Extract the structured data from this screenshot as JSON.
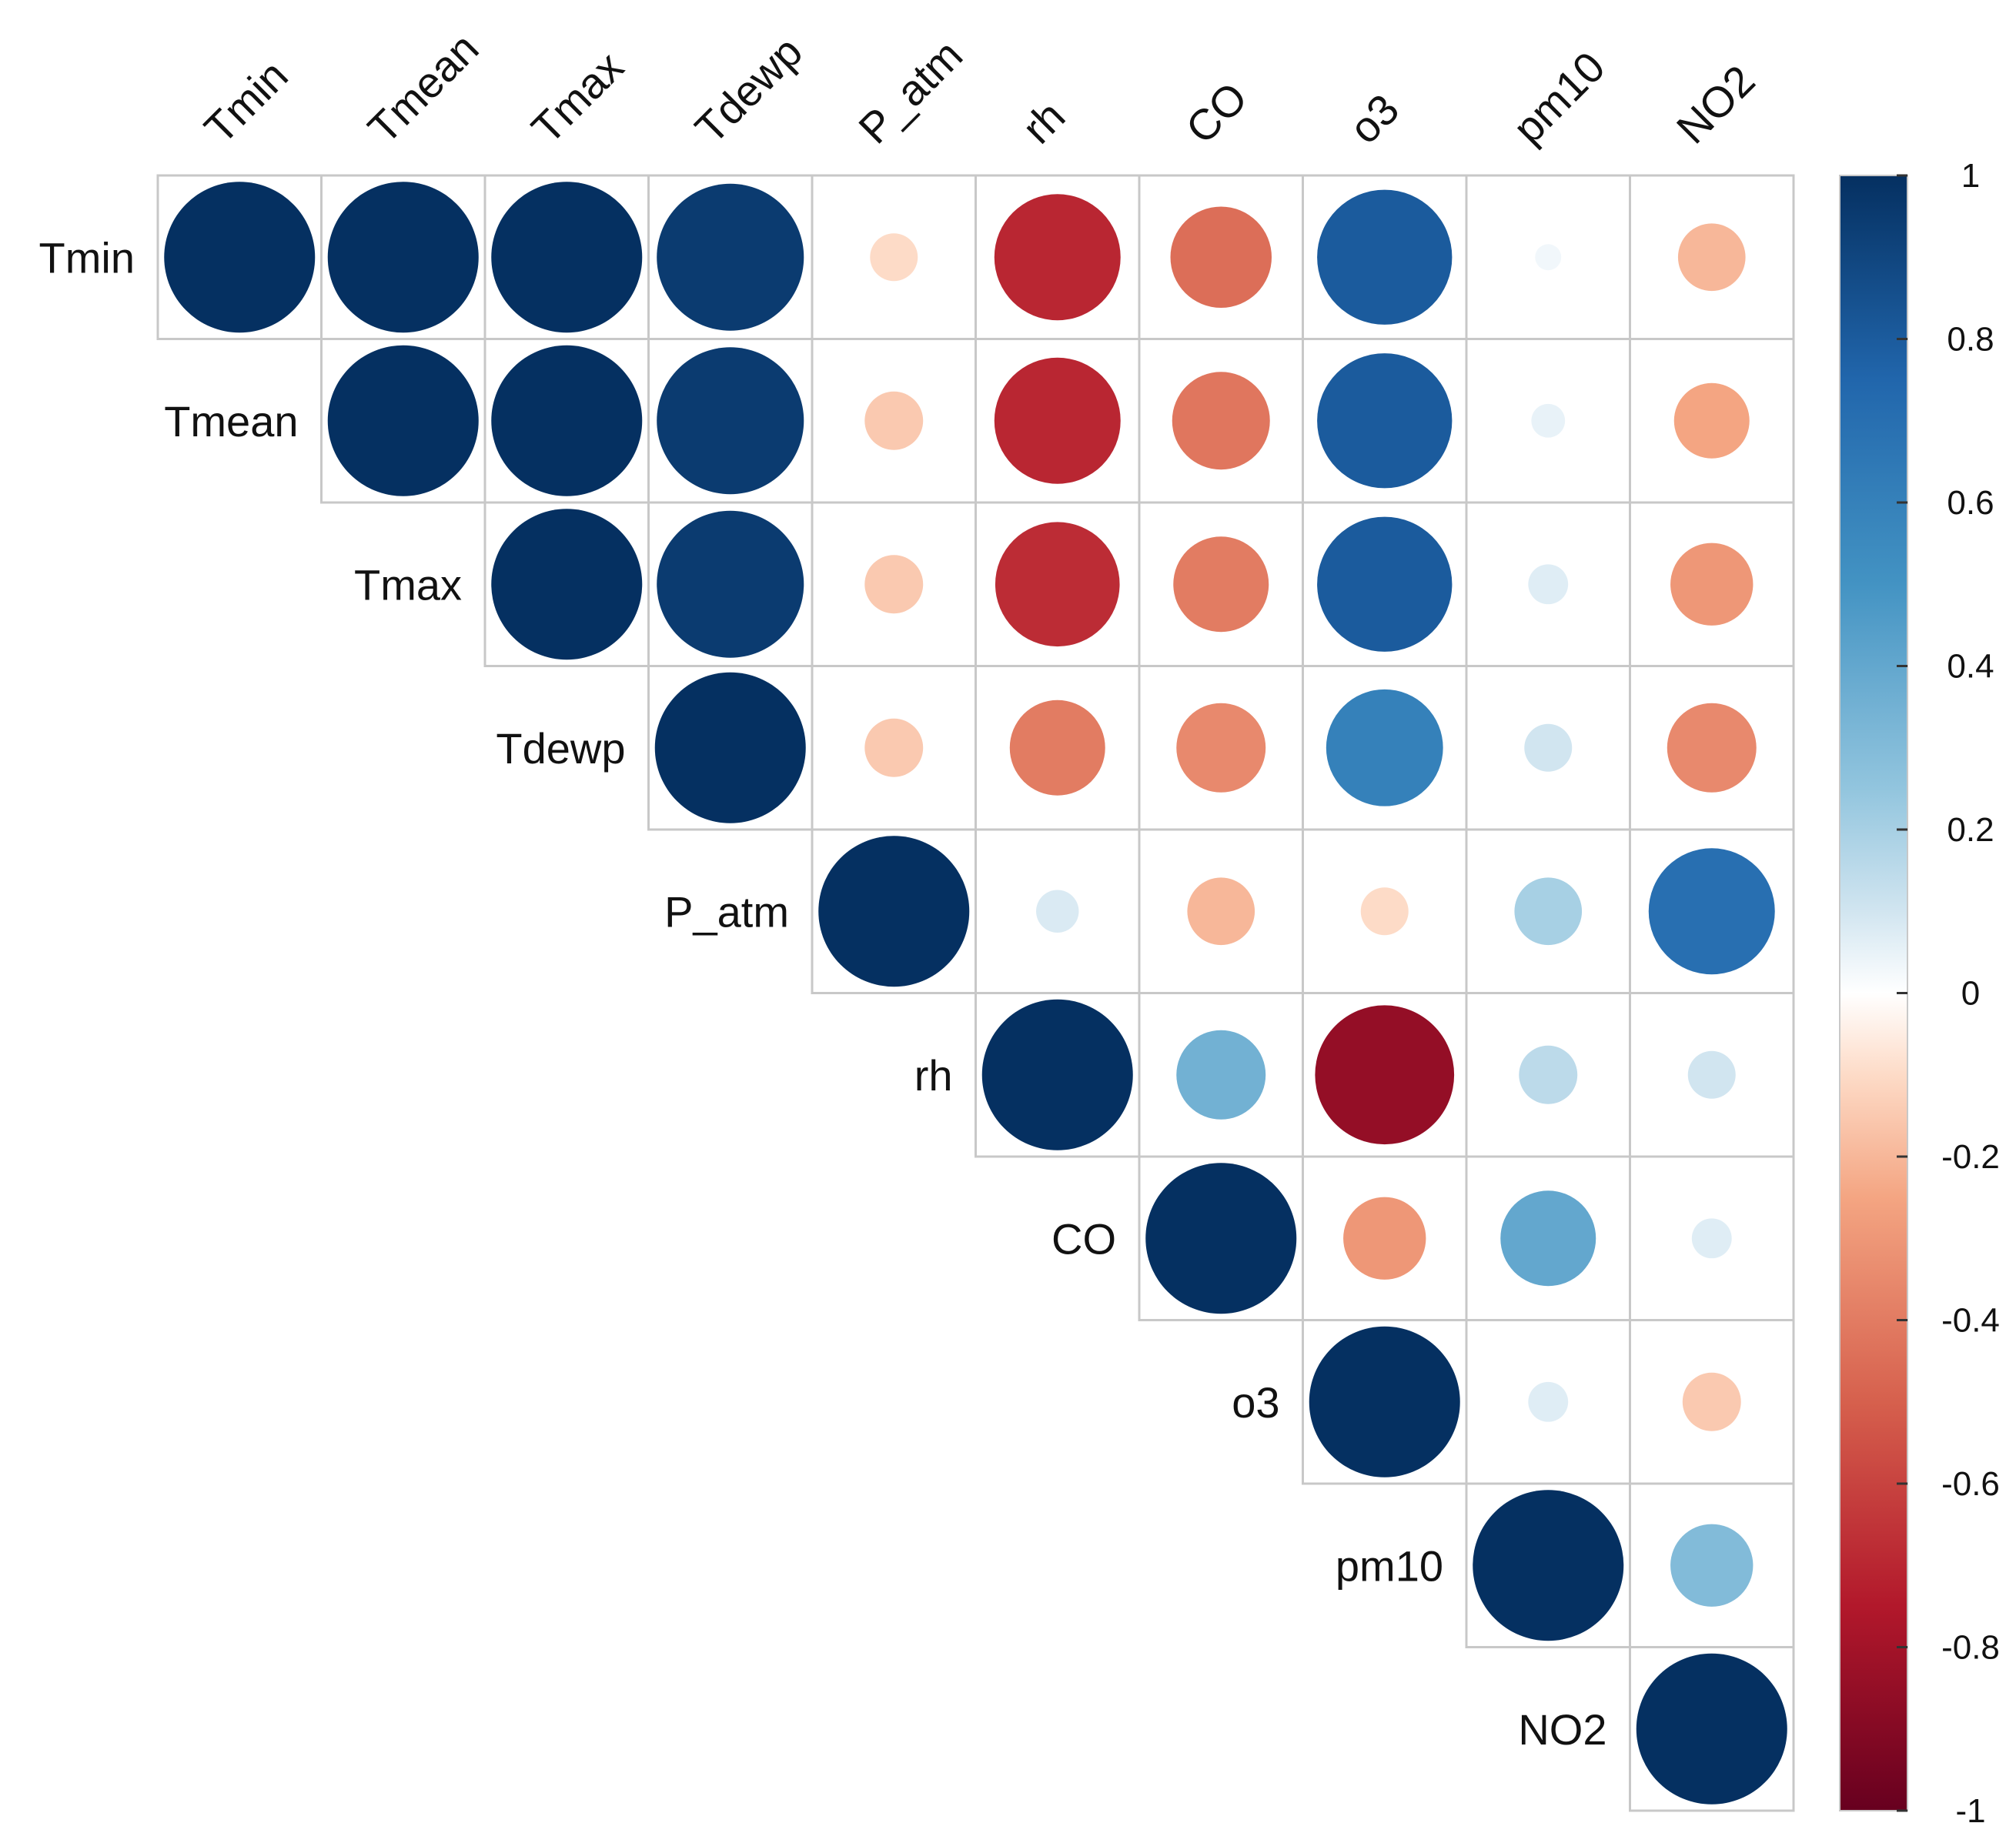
{
  "chart_data": {
    "type": "heatmap",
    "variant": "correlation-matrix-upper-circle",
    "title": "",
    "variables": [
      "Tmin",
      "Tmean",
      "Tmax",
      "Tdewp",
      "P_atm",
      "rh",
      "CO",
      "o3",
      "pm10",
      "NO2"
    ],
    "matrix": [
      [
        1.0,
        1.0,
        1.0,
        0.95,
        -0.1,
        -0.7,
        -0.45,
        0.8,
        0.03,
        -0.2
      ],
      [
        1.0,
        1.0,
        1.0,
        0.95,
        -0.15,
        -0.7,
        -0.42,
        0.8,
        0.05,
        -0.25
      ],
      [
        1.0,
        1.0,
        1.0,
        0.95,
        -0.15,
        -0.68,
        -0.4,
        0.8,
        0.07,
        -0.3
      ],
      [
        0.95,
        0.95,
        0.95,
        1.0,
        -0.15,
        -0.4,
        -0.35,
        0.6,
        0.1,
        -0.35
      ],
      [
        -0.1,
        -0.15,
        -0.15,
        -0.15,
        1.0,
        0.08,
        -0.2,
        -0.1,
        0.2,
        0.7
      ],
      [
        -0.7,
        -0.7,
        -0.68,
        -0.4,
        0.08,
        1.0,
        0.35,
        -0.85,
        0.15,
        0.1
      ],
      [
        -0.45,
        -0.42,
        -0.4,
        -0.35,
        -0.2,
        0.35,
        1.0,
        -0.3,
        0.4,
        0.07
      ],
      [
        0.8,
        0.8,
        0.8,
        0.6,
        -0.1,
        -0.85,
        -0.3,
        1.0,
        0.07,
        -0.15
      ],
      [
        0.03,
        0.05,
        0.07,
        0.1,
        0.2,
        0.15,
        0.4,
        0.07,
        1.0,
        0.3
      ],
      [
        -0.2,
        -0.25,
        -0.3,
        -0.35,
        0.7,
        0.1,
        0.07,
        -0.15,
        0.3,
        1.0
      ]
    ],
    "legend": {
      "position": "right",
      "range": [
        -1,
        1
      ],
      "ticks": [
        "1",
        "0.8",
        "0.6",
        "0.4",
        "0.2",
        "0",
        "-0.2",
        "-0.4",
        "-0.6",
        "-0.8",
        "-1"
      ],
      "tick_values": [
        1,
        0.8,
        0.6,
        0.4,
        0.2,
        0,
        -0.2,
        -0.4,
        -0.6,
        -0.8,
        -1
      ]
    },
    "colors": {
      "-1": "#67001f",
      "-0.75": "#b2182b",
      "-0.5": "#d6604d",
      "-0.25": "#f4a582",
      "-0.1": "#fddbc7",
      "0": "#ffffff",
      "0.1": "#d1e5f0",
      "0.25": "#92c5de",
      "0.5": "#4393c3",
      "0.75": "#2166ac",
      "1": "#053061"
    }
  }
}
